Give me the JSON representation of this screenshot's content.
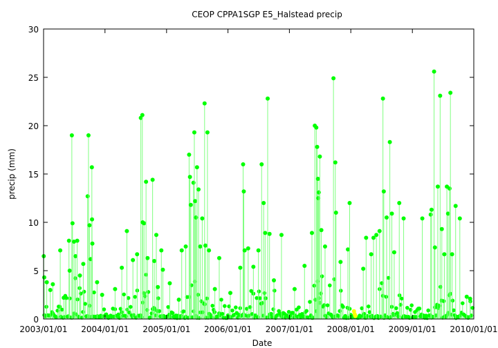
{
  "chart_data": {
    "type": "scatter",
    "title": "CEOP CPPA1SGP E5_Halstead  precip",
    "xlabel": "Date",
    "ylabel": "precip (mm)",
    "xlim": [
      "2003/01/01",
      "2010/01/01"
    ],
    "ylim": [
      0,
      30
    ],
    "x_tick_labels": [
      "2003/01/01",
      "2004/01/01",
      "2005/01/01",
      "2006/01/01",
      "2007/01/01",
      "2008/01/01",
      "2009/01/01",
      "2010/01/01"
    ],
    "y_tick_labels": [
      "0",
      "5",
      "10",
      "15",
      "20",
      "25",
      "30"
    ],
    "grid": false,
    "legend": "none",
    "colors": {
      "series": "#00ff00",
      "drop_line": "#7fff7f",
      "highlight": "#ffff00"
    },
    "series": [
      {
        "values": [
          [
            "2003/01/02",
            6.5
          ],
          [
            "2003/01/05",
            4.3
          ],
          [
            "2003/01/20",
            3.8
          ],
          [
            "2003/02/10",
            3.0
          ],
          [
            "2003/02/25",
            3.6
          ],
          [
            "2003/04/10",
            7.1
          ],
          [
            "2003/05/01",
            2.2
          ],
          [
            "2003/06/01",
            8.1
          ],
          [
            "2003/06/05",
            5.0
          ],
          [
            "2003/06/18",
            19.0
          ],
          [
            "2003/06/22",
            9.9
          ],
          [
            "2003/07/01",
            8.0
          ],
          [
            "2003/07/10",
            6.5
          ],
          [
            "2003/07/20",
            8.1
          ],
          [
            "2003/08/05",
            4.5
          ],
          [
            "2003/08/25",
            5.7
          ],
          [
            "2003/09/20",
            12.7
          ],
          [
            "2003/09/25",
            19.0
          ],
          [
            "2003/10/01",
            9.7
          ],
          [
            "2003/10/08",
            6.2
          ],
          [
            "2003/10/15",
            15.7
          ],
          [
            "2003/10/16",
            10.3
          ],
          [
            "2003/10/18",
            7.8
          ],
          [
            "2003/11/15",
            3.8
          ],
          [
            "2003/12/15",
            2.5
          ],
          [
            "2004/03/01",
            3.1
          ],
          [
            "2004/04/10",
            5.3
          ],
          [
            "2004/05/10",
            9.1
          ],
          [
            "2004/06/15",
            6.1
          ],
          [
            "2004/07/10",
            6.7
          ],
          [
            "2004/08/01",
            20.8
          ],
          [
            "2004/08/10",
            21.1
          ],
          [
            "2004/08/12",
            10.0
          ],
          [
            "2004/08/20",
            9.9
          ],
          [
            "2004/09/01",
            14.2
          ],
          [
            "2004/09/10",
            6.3
          ],
          [
            "2004/10/10",
            14.4
          ],
          [
            "2004/10/20",
            6.0
          ],
          [
            "2004/11/01",
            8.7
          ],
          [
            "2004/11/10",
            3.3
          ],
          [
            "2004/12/01",
            7.1
          ],
          [
            "2004/12/10",
            5.1
          ],
          [
            "2005/01/20",
            3.7
          ],
          [
            "2005/03/15",
            2.0
          ],
          [
            "2005/04/01",
            7.1
          ],
          [
            "2005/04/25",
            7.5
          ],
          [
            "2005/05/15",
            17.0
          ],
          [
            "2005/05/20",
            14.7
          ],
          [
            "2005/05/25",
            11.8
          ],
          [
            "2005/06/10",
            14.1
          ],
          [
            "2005/06/15",
            19.3
          ],
          [
            "2005/06/20",
            12.2
          ],
          [
            "2005/06/25",
            10.5
          ],
          [
            "2005/07/01",
            15.7
          ],
          [
            "2005/07/10",
            13.4
          ],
          [
            "2005/07/20",
            7.5
          ],
          [
            "2005/08/01",
            10.4
          ],
          [
            "2005/08/15",
            22.3
          ],
          [
            "2005/08/20",
            7.6
          ],
          [
            "2005/09/01",
            19.3
          ],
          [
            "2005/09/10",
            7.1
          ],
          [
            "2005/10/15",
            3.1
          ],
          [
            "2005/11/10",
            6.3
          ],
          [
            "2006/01/15",
            2.7
          ],
          [
            "2006/03/15",
            5.3
          ],
          [
            "2006/04/01",
            16.0
          ],
          [
            "2006/04/05",
            13.2
          ],
          [
            "2006/04/10",
            7.1
          ],
          [
            "2006/05/01",
            7.3
          ],
          [
            "2006/06/01",
            5.4
          ],
          [
            "2006/07/01",
            7.1
          ],
          [
            "2006/07/20",
            16.0
          ],
          [
            "2006/08/01",
            12.0
          ],
          [
            "2006/08/10",
            8.9
          ],
          [
            "2006/08/25",
            22.8
          ],
          [
            "2006/09/05",
            8.8
          ],
          [
            "2006/10/01",
            4.0
          ],
          [
            "2006/11/15",
            8.7
          ],
          [
            "2007/02/01",
            3.1
          ],
          [
            "2007/04/01",
            5.5
          ],
          [
            "2007/05/15",
            8.9
          ],
          [
            "2007/06/01",
            20.0
          ],
          [
            "2007/06/10",
            19.8
          ],
          [
            "2007/06/15",
            17.8
          ],
          [
            "2007/06/20",
            14.5
          ],
          [
            "2007/06/22",
            12.5
          ],
          [
            "2007/06/25",
            13.1
          ],
          [
            "2007/07/01",
            16.8
          ],
          [
            "2007/07/10",
            9.2
          ],
          [
            "2007/08/01",
            7.5
          ],
          [
            "2007/09/20",
            24.9
          ],
          [
            "2007/10/01",
            16.2
          ],
          [
            "2007/10/05",
            11.0
          ],
          [
            "2007/11/01",
            5.9
          ],
          [
            "2007/12/15",
            7.2
          ],
          [
            "2007/12/25",
            12.0
          ],
          [
            "2008/03/15",
            5.2
          ],
          [
            "2008/04/01",
            8.4
          ],
          [
            "2008/05/01",
            6.7
          ],
          [
            "2008/05/15",
            8.4
          ],
          [
            "2008/06/01",
            8.7
          ],
          [
            "2008/06/20",
            9.1
          ],
          [
            "2008/07/10",
            22.8
          ],
          [
            "2008/07/15",
            13.2
          ],
          [
            "2008/08/01",
            10.5
          ],
          [
            "2008/08/20",
            18.3
          ],
          [
            "2008/09/01",
            10.9
          ],
          [
            "2008/09/15",
            6.9
          ],
          [
            "2008/10/15",
            12.0
          ],
          [
            "2008/11/10",
            10.4
          ],
          [
            "2009/03/01",
            10.4
          ],
          [
            "2009/04/20",
            10.8
          ],
          [
            "2009/04/25",
            11.3
          ],
          [
            "2009/05/10",
            25.6
          ],
          [
            "2009/05/15",
            7.4
          ],
          [
            "2009/06/01",
            13.7
          ],
          [
            "2009/06/15",
            23.1
          ],
          [
            "2009/06/25",
            9.3
          ],
          [
            "2009/07/10",
            6.7
          ],
          [
            "2009/07/25",
            13.7
          ],
          [
            "2009/08/01",
            10.9
          ],
          [
            "2009/08/10",
            13.5
          ],
          [
            "2009/08/15",
            23.4
          ],
          [
            "2009/08/25",
            6.7
          ],
          [
            "2009/09/15",
            11.7
          ],
          [
            "2009/10/10",
            10.4
          ],
          [
            "2009/11/20",
            2.3
          ],
          [
            "2009/12/10",
            2.1
          ]
        ]
      }
    ],
    "highlight_points": [
      [
        "2008/01/20",
        0.8
      ],
      [
        "2008/01/24",
        0.5
      ],
      [
        "2008/01/28",
        0.3
      ]
    ]
  }
}
